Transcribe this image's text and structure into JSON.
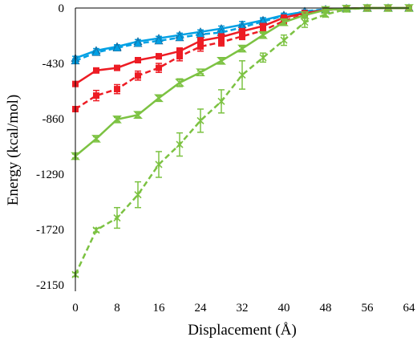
{
  "chart_data": {
    "type": "line",
    "title": "",
    "xlabel": "Displacement (Å)",
    "ylabel": "Energy (kcal/mol)",
    "xlim": [
      0,
      64
    ],
    "ylim": [
      -2150,
      0
    ],
    "xticks": [
      0,
      8,
      16,
      24,
      32,
      40,
      48,
      56,
      64
    ],
    "yticks": [
      0,
      -430,
      -860,
      -1290,
      -1720,
      -2150
    ],
    "xtick_labels": [
      "0",
      "8",
      "16",
      "24",
      "32",
      "40",
      "48",
      "56",
      "64"
    ],
    "ytick_labels": [
      "0",
      "-430",
      "-860",
      "-1290",
      "-1720",
      "-2150"
    ],
    "grid": false,
    "legend": "none",
    "x": [
      0,
      4,
      8,
      12,
      16,
      20,
      24,
      28,
      32,
      36,
      40,
      44,
      48,
      52,
      56,
      60,
      64
    ],
    "series": [
      {
        "color": "#00a0e4",
        "line_style": "solid",
        "marker": "triangle",
        "values": [
          -390,
          -330,
          -300,
          -260,
          -235,
          -210,
          -185,
          -160,
          -130,
          -95,
          -55,
          -30,
          -15,
          -5,
          -2,
          0,
          0
        ],
        "errors": [
          15,
          15,
          15,
          15,
          15,
          15,
          15,
          20,
          25,
          20,
          15,
          10,
          10,
          5,
          5,
          5,
          5
        ]
      },
      {
        "color": "#00a0e4",
        "line_style": "dashed",
        "marker": "triangle",
        "values": [
          -410,
          -345,
          -310,
          -275,
          -255,
          -230,
          -205,
          -190,
          -150,
          -105,
          -60,
          -25,
          -10,
          -3,
          0,
          0,
          0
        ],
        "errors": [
          15,
          15,
          15,
          15,
          15,
          20,
          20,
          25,
          25,
          20,
          15,
          10,
          10,
          5,
          5,
          5,
          5
        ]
      },
      {
        "color": "#ed1c24",
        "line_style": "solid",
        "marker": "square",
        "values": [
          -590,
          -485,
          -465,
          -405,
          -375,
          -335,
          -255,
          -225,
          -180,
          -140,
          -75,
          -40,
          -15,
          -5,
          0,
          0,
          0
        ],
        "errors": [
          15,
          15,
          15,
          20,
          20,
          25,
          25,
          25,
          20,
          20,
          15,
          10,
          10,
          5,
          5,
          5,
          5
        ]
      },
      {
        "color": "#ed1c24",
        "line_style": "dashed",
        "marker": "square",
        "values": [
          -785,
          -680,
          -630,
          -525,
          -465,
          -375,
          -300,
          -265,
          -220,
          -175,
          -100,
          -50,
          -15,
          -5,
          0,
          0,
          0
        ],
        "errors": [
          20,
          40,
          35,
          35,
          35,
          35,
          35,
          30,
          25,
          20,
          15,
          10,
          10,
          5,
          5,
          5,
          5
        ]
      },
      {
        "color": "#7cc242",
        "line_style": "solid",
        "marker": "hourglass",
        "values": [
          -1150,
          -1015,
          -865,
          -830,
          -700,
          -580,
          -500,
          -410,
          -315,
          -210,
          -110,
          -55,
          -15,
          -5,
          0,
          0,
          0
        ],
        "errors": [
          15,
          15,
          15,
          20,
          20,
          30,
          10,
          20,
          15,
          15,
          20,
          10,
          10,
          5,
          5,
          5,
          5
        ]
      },
      {
        "color": "#7cc242",
        "line_style": "dashed",
        "marker": "x",
        "values": [
          -2070,
          -1725,
          -1630,
          -1450,
          -1215,
          -1060,
          -875,
          -725,
          -520,
          -385,
          -250,
          -110,
          -50,
          -10,
          0,
          0,
          0
        ],
        "errors": [
          15,
          15,
          80,
          100,
          100,
          90,
          90,
          90,
          110,
          35,
          40,
          40,
          20,
          10,
          5,
          5,
          5
        ]
      }
    ]
  }
}
